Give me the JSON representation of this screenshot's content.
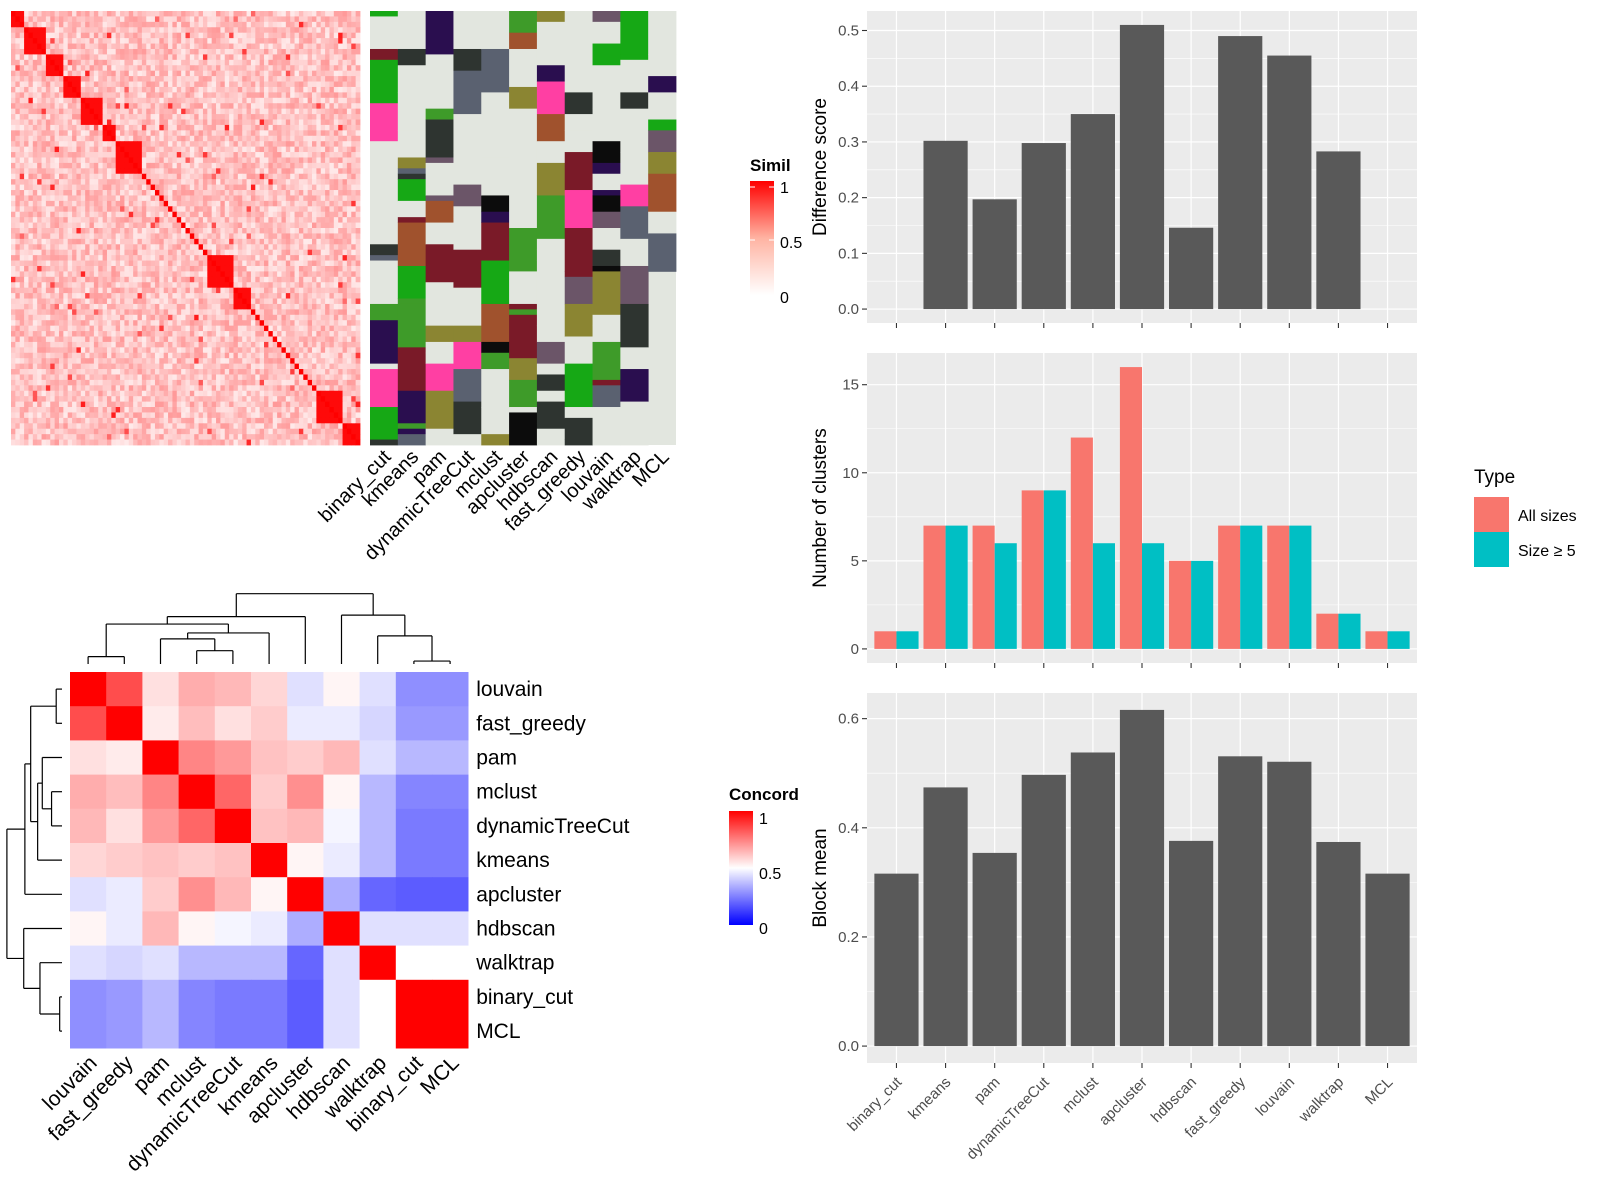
{
  "methods": [
    "binary_cut",
    "kmeans",
    "pam",
    "dynamicTreeCut",
    "mclust",
    "apcluster",
    "hdbscan",
    "fast_greedy",
    "louvain",
    "walktrap",
    "MCL"
  ],
  "similarity_legend": {
    "title": "Simila",
    "ticks": [
      "1",
      "0.5",
      "0"
    ]
  },
  "concordance_legend": {
    "title": "Concord",
    "ticks": [
      "1",
      "0.5",
      "0"
    ]
  },
  "colors": {
    "bar": "#595959",
    "all_sizes": "#F8766D",
    "size5": "#00BFC4",
    "panel_bg": "#EBEBEB",
    "grid": "#FFFFFF",
    "similarity_high": "#FF0000",
    "concordance_low": "#0000FF"
  },
  "similarity_heatmap": {
    "type": "heatmap",
    "rows": 80,
    "cols": 80,
    "value_range": [
      0,
      1
    ]
  },
  "class_matrix": {
    "type": "heatmap",
    "rows": 80,
    "cols": 11,
    "palette": [
      "#E2E6DF",
      "#2E3430",
      "#0C0C0C",
      "#2A0E4F",
      "#16A815",
      "#5A6170",
      "#6B5568",
      "#A0522D",
      "#FF3FA3",
      "#8B8532",
      "#7A1A28",
      "#3E9B29"
    ]
  },
  "concordance": {
    "type": "heatmap",
    "order": [
      "louvain",
      "fast_greedy",
      "pam",
      "mclust",
      "dynamicTreeCut",
      "kmeans",
      "apcluster",
      "hdbscan",
      "walktrap",
      "binary_cut",
      "MCL"
    ],
    "matrix": [
      [
        1.0,
        0.85,
        0.56,
        0.66,
        0.64,
        0.58,
        0.44,
        0.52,
        0.44,
        0.28,
        0.28
      ],
      [
        0.85,
        1.0,
        0.54,
        0.63,
        0.56,
        0.6,
        0.46,
        0.46,
        0.42,
        0.3,
        0.3
      ],
      [
        0.56,
        0.54,
        1.0,
        0.74,
        0.7,
        0.62,
        0.6,
        0.64,
        0.44,
        0.36,
        0.36
      ],
      [
        0.66,
        0.63,
        0.74,
        1.0,
        0.8,
        0.6,
        0.72,
        0.52,
        0.36,
        0.26,
        0.26
      ],
      [
        0.64,
        0.56,
        0.7,
        0.8,
        1.0,
        0.62,
        0.64,
        0.48,
        0.36,
        0.24,
        0.24
      ],
      [
        0.58,
        0.6,
        0.62,
        0.6,
        0.62,
        1.0,
        0.52,
        0.46,
        0.36,
        0.24,
        0.24
      ],
      [
        0.44,
        0.46,
        0.6,
        0.72,
        0.64,
        0.52,
        1.0,
        0.34,
        0.2,
        0.18,
        0.18
      ],
      [
        0.52,
        0.46,
        0.64,
        0.52,
        0.48,
        0.46,
        0.34,
        1.0,
        0.44,
        0.44,
        0.44
      ],
      [
        0.44,
        0.42,
        0.44,
        0.36,
        0.36,
        0.36,
        0.2,
        0.44,
        1.0,
        0.5,
        0.5
      ],
      [
        0.28,
        0.3,
        0.36,
        0.26,
        0.24,
        0.24,
        0.18,
        0.44,
        0.5,
        1.0,
        1.0
      ],
      [
        0.28,
        0.3,
        0.36,
        0.26,
        0.24,
        0.24,
        0.18,
        0.44,
        0.5,
        1.0,
        1.0
      ]
    ]
  },
  "chart_data": [
    {
      "type": "bar",
      "categories": [
        "binary_cut",
        "kmeans",
        "pam",
        "dynamicTreeCut",
        "mclust",
        "apcluster",
        "hdbscan",
        "fast_greedy",
        "louvain",
        "walktrap",
        "MCL"
      ],
      "values": [
        0,
        0.302,
        0.197,
        0.298,
        0.35,
        0.51,
        0.146,
        0.49,
        0.455,
        0.283,
        0
      ],
      "xlabel": "",
      "ylabel": "Difference score",
      "ylim": [
        -0.025,
        0.535
      ],
      "yticks": [
        "0.0",
        "0.1",
        "0.2",
        "0.3",
        "0.4",
        "0.5"
      ],
      "grid": true
    },
    {
      "type": "bar",
      "categories": [
        "binary_cut",
        "kmeans",
        "pam",
        "dynamicTreeCut",
        "mclust",
        "apcluster",
        "hdbscan",
        "fast_greedy",
        "louvain",
        "walktrap",
        "MCL"
      ],
      "series": [
        {
          "name": "All sizes",
          "values": [
            1,
            7,
            7,
            9,
            12,
            16,
            5,
            7,
            7,
            2,
            1
          ]
        },
        {
          "name": "Size ≥ 5",
          "values": [
            1,
            7,
            6,
            9,
            6,
            6,
            5,
            7,
            7,
            2,
            1
          ]
        }
      ],
      "xlabel": "",
      "ylabel": "Number of clusters",
      "ylim": [
        -0.8,
        16.8
      ],
      "yticks": [
        "0",
        "5",
        "10",
        "15"
      ],
      "legend": {
        "title": "Type",
        "position": "right"
      },
      "grid": true
    },
    {
      "type": "bar",
      "categories": [
        "binary_cut",
        "kmeans",
        "pam",
        "dynamicTreeCut",
        "mclust",
        "apcluster",
        "hdbscan",
        "fast_greedy",
        "louvain",
        "walktrap",
        "MCL"
      ],
      "values": [
        0.316,
        0.474,
        0.354,
        0.497,
        0.538,
        0.616,
        0.376,
        0.531,
        0.521,
        0.374,
        0.316
      ],
      "xlabel": "",
      "ylabel": "Block mean",
      "ylim": [
        -0.031,
        0.647
      ],
      "yticks": [
        "0.0",
        "0.2",
        "0.4",
        "0.6"
      ],
      "grid": true
    }
  ]
}
